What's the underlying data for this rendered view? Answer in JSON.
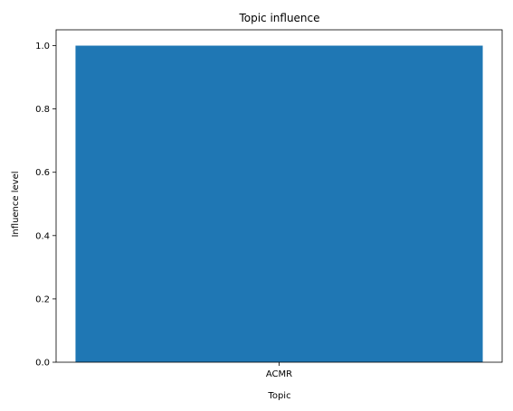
{
  "chart_data": {
    "type": "bar",
    "title": "Topic influence",
    "xlabel": "Topic",
    "ylabel": "Influence level",
    "categories": [
      "ACMR"
    ],
    "values": [
      1.0
    ],
    "ylim": [
      0,
      1.05
    ],
    "yticks": [
      0.0,
      0.2,
      0.4,
      0.6,
      0.8,
      1.0
    ],
    "ytick_labels": [
      "0.0",
      "0.2",
      "0.4",
      "0.6",
      "0.8",
      "1.0"
    ],
    "grid": false,
    "bar_color": "#1f77b4"
  }
}
